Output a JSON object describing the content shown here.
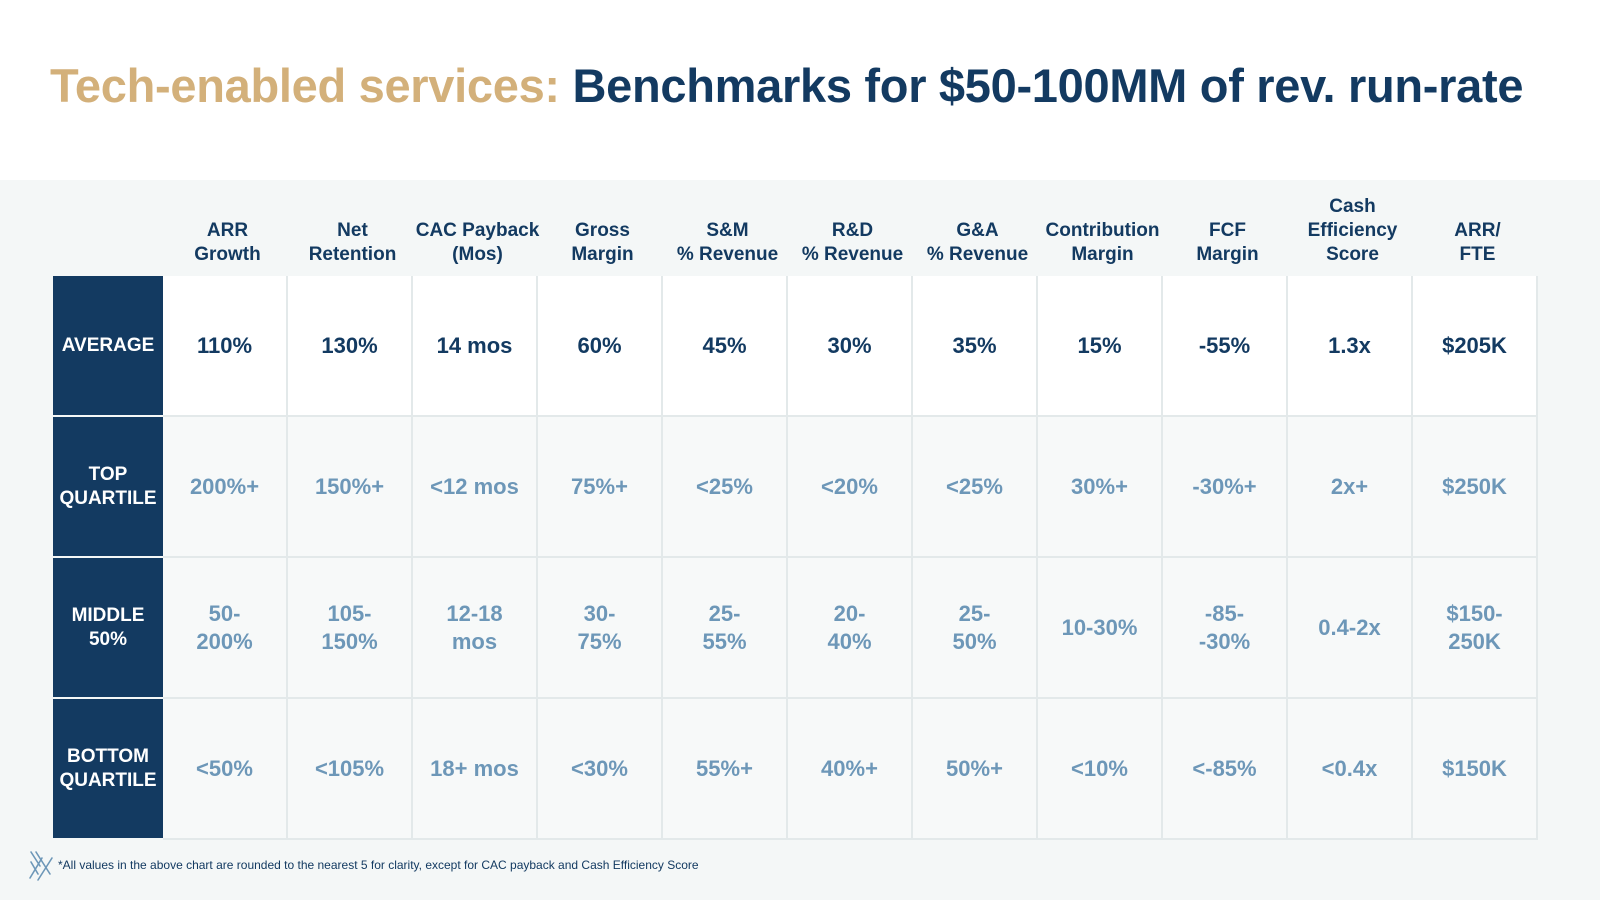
{
  "header": {
    "title_accent": "Tech-enabled services:",
    "title_main": "Benchmarks for $50-100MM of rev. run-rate"
  },
  "table": {
    "columns": [
      "ARR\nGrowth",
      "Net\nRetention",
      "CAC Payback\n(Mos)",
      "Gross\nMargin",
      "S&M\n% Revenue",
      "R&D\n% Revenue",
      "G&A\n% Revenue",
      "Contribution\nMargin",
      "FCF\nMargin",
      "Cash\nEfficiency\nScore",
      "ARR/\nFTE"
    ],
    "rows": [
      {
        "label": "AVERAGE",
        "values": [
          "110%",
          "130%",
          "14 mos",
          "60%",
          "45%",
          "30%",
          "35%",
          "15%",
          "-55%",
          "1.3x",
          "$205K"
        ]
      },
      {
        "label": "TOP\nQUARTILE",
        "values": [
          "200%+",
          "150%+",
          "<12 mos",
          "75%+",
          "<25%",
          "<20%",
          "<25%",
          "30%+",
          "-30%+",
          "2x+",
          "$250K"
        ]
      },
      {
        "label": "MIDDLE\n50%",
        "values": [
          "50-\n200%",
          "105-\n150%",
          "12-18\nmos",
          "30-\n75%",
          "25-\n55%",
          "20-\n40%",
          "25-\n50%",
          "10-30%",
          "-85-\n-30%",
          "0.4-2x",
          "$150-\n250K"
        ]
      },
      {
        "label": "BOTTOM\nQUARTILE",
        "values": [
          "<50%",
          "<105%",
          "18+ mos",
          "<30%",
          "55%+",
          "40%+",
          "50%+",
          "<10%",
          "<-85%",
          "<0.4x",
          "$150K"
        ]
      }
    ]
  },
  "footer": {
    "logo_icon": "slash-logo-icon",
    "note": "*All values in the above chart are rounded to the nearest 5 for clarity, except for CAC payback and Cash Efficiency Score"
  },
  "colors": {
    "navy": "#133a61",
    "gold": "#d3b07a",
    "muted_blue": "#6d97b8",
    "panel_bg": "#f4f7f7"
  }
}
